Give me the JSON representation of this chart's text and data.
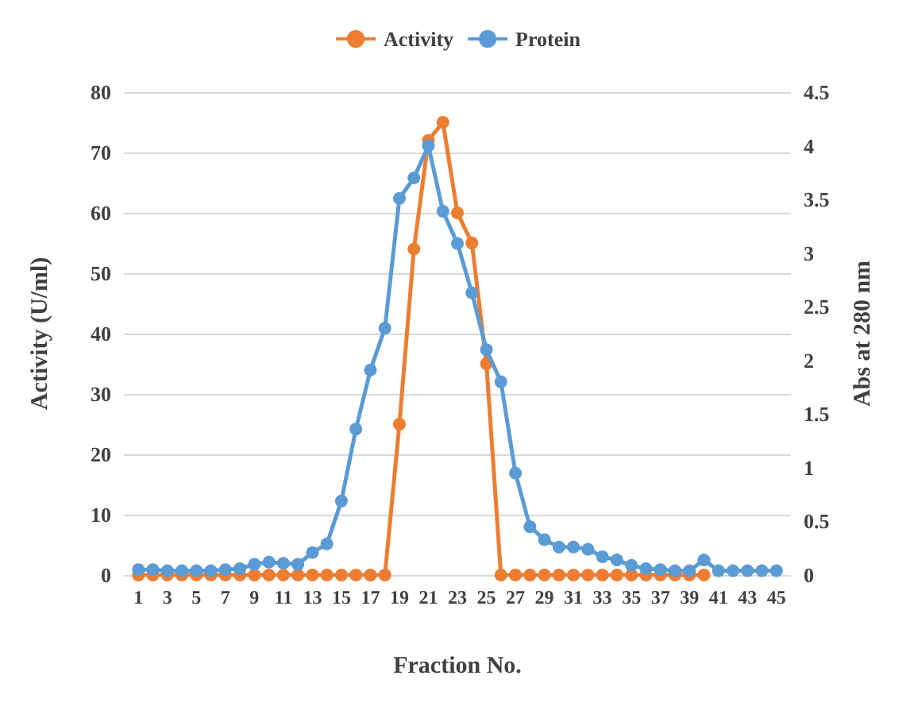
{
  "chart_data": {
    "type": "line",
    "xlabel": "Fraction No.",
    "ylabel": "Activity (U/ml)",
    "y2label": "Abs at 280 nm",
    "x": [
      1,
      2,
      3,
      4,
      5,
      6,
      7,
      8,
      9,
      10,
      11,
      12,
      13,
      14,
      15,
      16,
      17,
      18,
      19,
      20,
      21,
      22,
      23,
      24,
      25,
      26,
      27,
      28,
      29,
      30,
      31,
      32,
      33,
      34,
      35,
      36,
      37,
      38,
      39,
      40,
      41,
      42,
      43,
      44,
      45
    ],
    "xlim": [
      0,
      46
    ],
    "xticks": [
      1,
      3,
      5,
      7,
      9,
      11,
      13,
      15,
      17,
      19,
      21,
      23,
      25,
      27,
      29,
      31,
      33,
      35,
      37,
      39,
      41,
      43,
      45
    ],
    "series": [
      {
        "name": "Activity",
        "color": "#ed7d31",
        "values": [
          0,
          0,
          0,
          0,
          0,
          0,
          0,
          0,
          0,
          0,
          0,
          0,
          0,
          0,
          0,
          0,
          0,
          0,
          25,
          54,
          72,
          75,
          60,
          55,
          35,
          0,
          0,
          0,
          0,
          0,
          0,
          0,
          0,
          0,
          0,
          0,
          0,
          0,
          0,
          0,
          null,
          null,
          null,
          null,
          null
        ]
      },
      {
        "name": "Protein",
        "color": "#5b9bd5",
        "axis": "y2",
        "values": [
          0.05,
          0.05,
          0.04,
          0.04,
          0.04,
          0.04,
          0.05,
          0.06,
          0.1,
          0.12,
          0.11,
          0.1,
          0.21,
          0.29,
          0.69,
          1.36,
          1.91,
          2.3,
          3.51,
          3.7,
          4.0,
          3.39,
          3.09,
          2.63,
          2.1,
          1.8,
          0.95,
          0.45,
          0.33,
          0.26,
          0.26,
          0.24,
          0.17,
          0.14,
          0.09,
          0.06,
          0.05,
          0.04,
          0.04,
          0.14,
          0.04,
          0.04,
          0.04,
          0.04,
          0.04
        ]
      }
    ],
    "ylim": [
      0,
      80
    ],
    "yticks": [
      0,
      10,
      20,
      30,
      40,
      50,
      60,
      70,
      80
    ],
    "y2lim": [
      0,
      4.5
    ],
    "y2ticks": [
      0,
      0.5,
      1,
      1.5,
      2,
      2.5,
      3,
      3.5,
      4,
      4.5
    ],
    "grid": "y",
    "legend": "top",
    "marker": "circle",
    "line_style": "solid"
  }
}
